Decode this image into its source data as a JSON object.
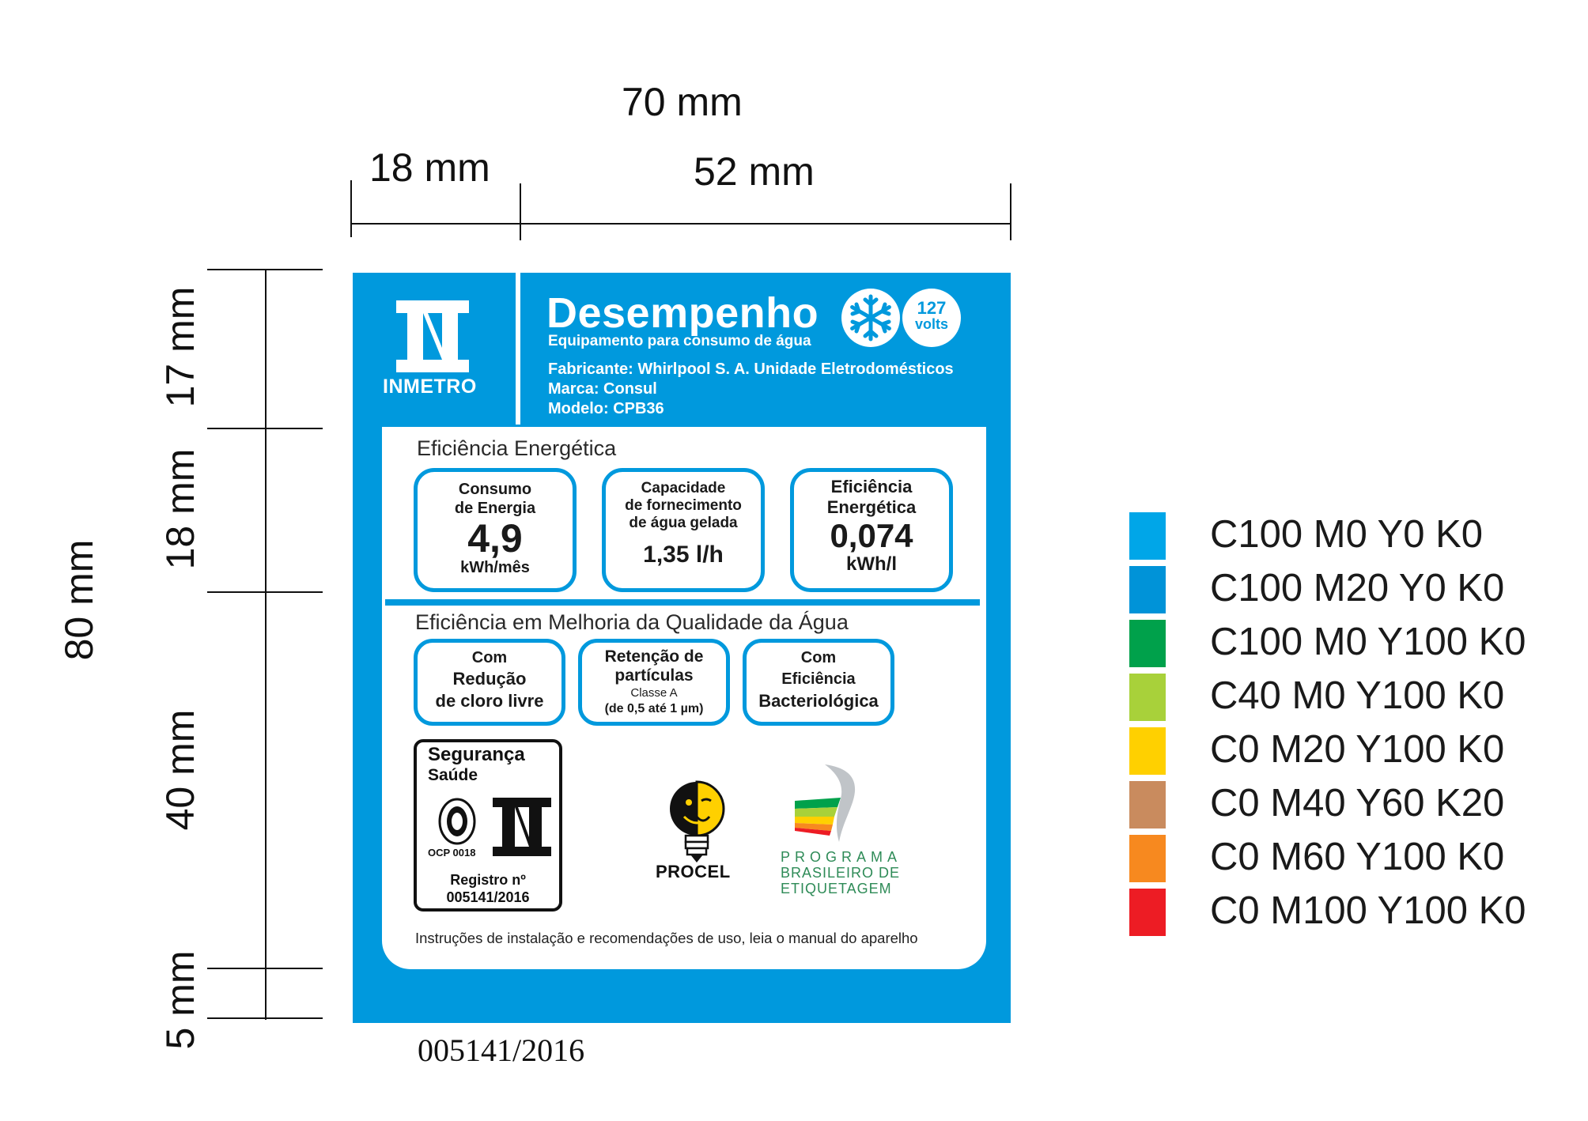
{
  "dimensions": {
    "total_width": "70 mm",
    "left_width": "18 mm",
    "right_width": "52 mm",
    "total_height": "80 mm",
    "h_top": "17 mm",
    "h_second": "18 mm",
    "h_third": "40 mm",
    "h_bottom": "5 mm"
  },
  "label": {
    "logo_text": "INMETRO",
    "title": "Desempenho",
    "subtitle": "Equipamento para consumo de água",
    "voltage_value": "127",
    "voltage_unit": "volts",
    "manufacturer": "Fabricante: Whirlpool S. A. Unidade Eletrodomésticos",
    "brand": "Marca: Consul",
    "model": "Modelo: CPB36",
    "energy_section": {
      "title": "Eficiência Energética",
      "boxes": [
        {
          "line1": "Consumo",
          "line2": "de Energia",
          "value": "4,9",
          "unit": "kWh/mês"
        },
        {
          "line1": "Capacidade",
          "line2": "de fornecimento",
          "line3": "de água gelada",
          "value": "1,35 l/h"
        },
        {
          "line1": "Eficiência",
          "line2": "Energética",
          "value": "0,074",
          "unit": "kWh/l"
        }
      ]
    },
    "water_section": {
      "title": "Eficiência em Melhoria da Qualidade da Água",
      "boxes": [
        {
          "line1": "Com",
          "line2": "Redução",
          "line3": "de cloro livre"
        },
        {
          "line1": "Retenção de",
          "line2": "partículas",
          "line3": "Classe A",
          "line4": "(de 0,5 até 1 µm)"
        },
        {
          "line1": "Com",
          "line2": "Eficiência",
          "line3": "Bacteriológica"
        }
      ]
    },
    "safety": {
      "title1": "Segurança",
      "title2": "Saúde",
      "ocp": "OCP 0018",
      "registro_label": "Registro nº",
      "registro_number": "005141/2016"
    },
    "procel": "PROCEL",
    "pbe_line1": "PROGRAMA",
    "pbe_line2": "BRASILEIRO DE",
    "pbe_line3": "ETIQUETAGEM",
    "instructions": "Instruções de instalação e recomendações de uso, leia o manual do aparelho"
  },
  "serial_below": "005141/2016",
  "color_legend": [
    {
      "label": "C100 M0 Y0 K0",
      "color": "#00a6e8"
    },
    {
      "label": "C100 M20 Y0 K0",
      "color": "#0093d8"
    },
    {
      "label": "C100 M0 Y100 K0",
      "color": "#00a14b"
    },
    {
      "label": "C40 M0 Y100 K0",
      "color": "#a8d13a"
    },
    {
      "label": "C0 M20 Y100 K0",
      "color": "#ffd000"
    },
    {
      "label": "C0 M40 Y60 K20",
      "color": "#c98b5e"
    },
    {
      "label": "C0 M60 Y100 K0",
      "color": "#f7891f"
    },
    {
      "label": "C0 M100 Y100 K0",
      "color": "#ed1c24"
    }
  ]
}
